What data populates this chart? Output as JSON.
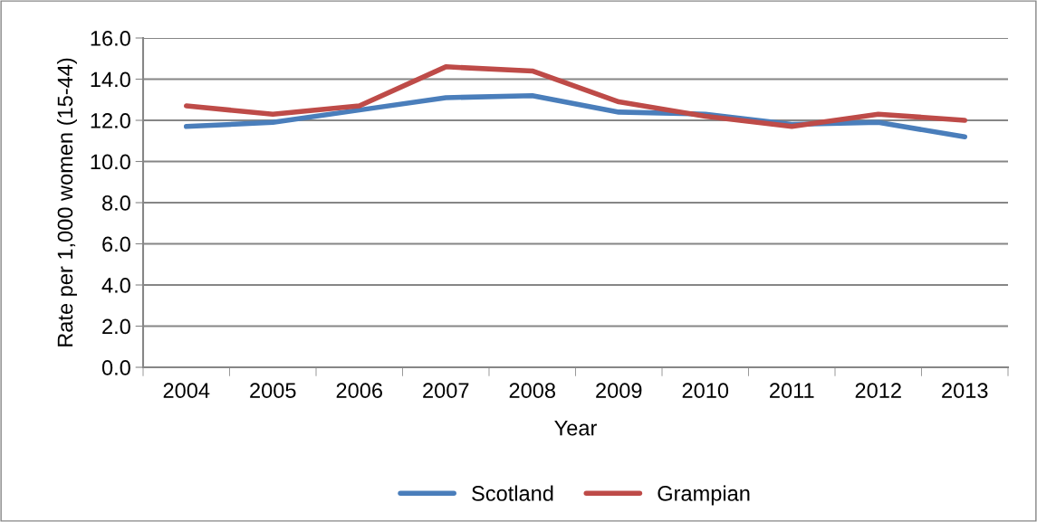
{
  "chart_data": {
    "type": "line",
    "xlabel": "Year",
    "ylabel": "Rate per 1,000 women (15-44)",
    "categories": [
      "2004",
      "2005",
      "2006",
      "2007",
      "2008",
      "2009",
      "2010",
      "2011",
      "2012",
      "2013"
    ],
    "series": [
      {
        "name": "Scotland",
        "color": "#4a7ebb",
        "values": [
          11.7,
          11.9,
          12.5,
          13.1,
          13.2,
          12.4,
          12.3,
          11.8,
          11.9,
          11.2
        ]
      },
      {
        "name": "Grampian",
        "color": "#be4b48",
        "values": [
          12.7,
          12.3,
          12.7,
          14.6,
          14.4,
          12.9,
          12.2,
          11.7,
          12.3,
          12.0
        ]
      }
    ],
    "ylim": [
      0,
      16
    ],
    "yticks": [
      {
        "value": 0,
        "label": "0.0"
      },
      {
        "value": 2,
        "label": "2.0"
      },
      {
        "value": 4,
        "label": "4.0"
      },
      {
        "value": 6,
        "label": "6.0"
      },
      {
        "value": 8,
        "label": "8.0"
      },
      {
        "value": 10,
        "label": "10.0"
      },
      {
        "value": 12,
        "label": "12.0"
      },
      {
        "value": 14,
        "label": "14.0"
      },
      {
        "value": 16,
        "label": "16.0"
      }
    ],
    "grid": "y",
    "legend": "bottom",
    "marker": "none",
    "line_style": "solid"
  }
}
